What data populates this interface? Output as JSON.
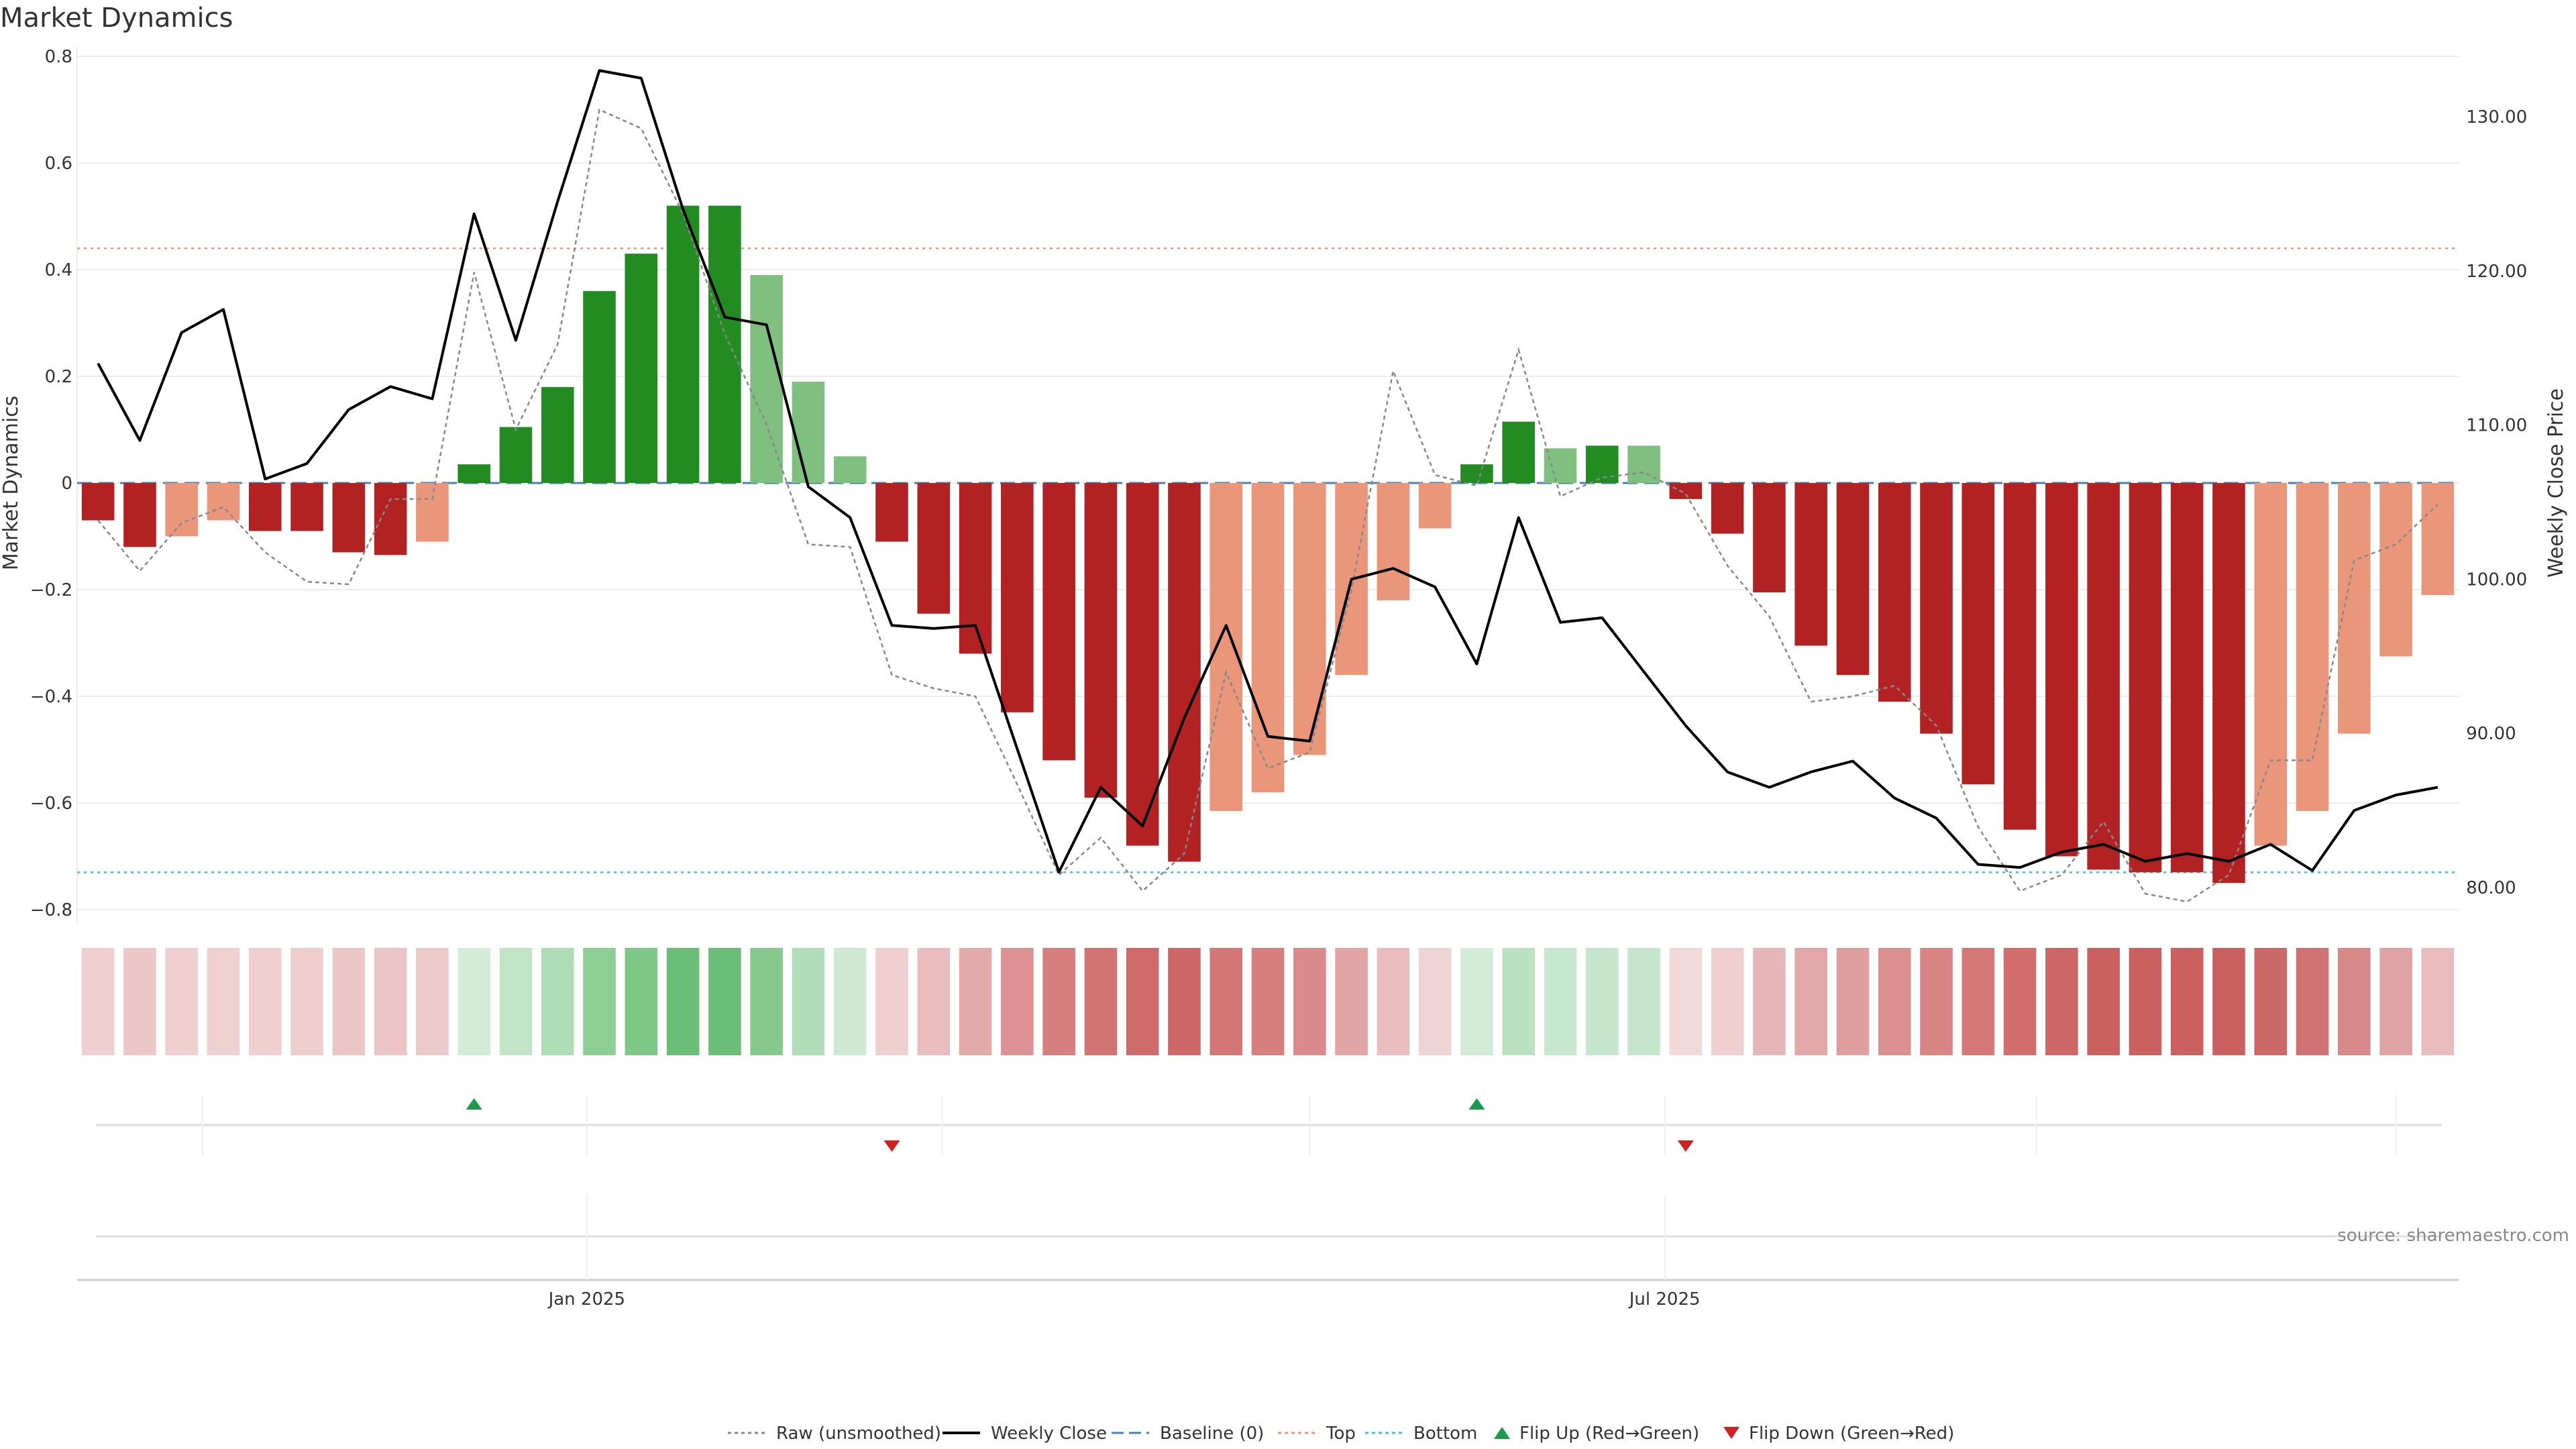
{
  "chart_data": {
    "type": "bar",
    "title": "Market Dynamics",
    "ylabel_left": "Market Dynamics",
    "ylabel_right": "Weekly Close Price",
    "ylim_left": [
      -0.85,
      0.8
    ],
    "ylim_right": [
      77,
      134
    ],
    "yticks_left": [
      "0.8",
      "0.6",
      "0.4",
      "0.2",
      "0",
      "−0.2",
      "−0.4",
      "−0.6",
      "−0.8"
    ],
    "yticks_left_values": [
      0.8,
      0.6,
      0.4,
      0.2,
      0,
      -0.2,
      -0.4,
      -0.6,
      -0.8
    ],
    "yticks_right": [
      "130.00",
      "120.00",
      "110.00",
      "100.00",
      "90.00",
      "80.00"
    ],
    "yticks_right_values": [
      130,
      120,
      110,
      100,
      90,
      80
    ],
    "xticks": [
      {
        "label": "Jan 2025",
        "index": 11.7
      },
      {
        "label": "Jul 2025",
        "index": 37.5
      }
    ],
    "top_line": 0.44,
    "bottom_line": -0.73,
    "baseline": 0,
    "bars": [
      -0.07,
      -0.12,
      -0.1,
      -0.07,
      -0.09,
      -0.09,
      -0.13,
      -0.135,
      -0.11,
      0.035,
      0.105,
      0.18,
      0.36,
      0.43,
      0.52,
      0.52,
      0.39,
      0.19,
      0.05,
      -0.11,
      -0.245,
      -0.32,
      -0.43,
      -0.52,
      -0.59,
      -0.68,
      -0.71,
      -0.615,
      -0.58,
      -0.51,
      -0.36,
      -0.22,
      -0.085,
      0.035,
      0.115,
      0.065,
      0.07,
      0.07,
      -0.03,
      -0.095,
      -0.205,
      -0.305,
      -0.36,
      -0.41,
      -0.47,
      -0.565,
      -0.65,
      -0.7,
      -0.725,
      -0.73,
      -0.73,
      -0.75,
      -0.68,
      -0.615,
      -0.47,
      -0.325,
      -0.21
    ],
    "bar_colors": [
      "#b22222",
      "#b22222",
      "#e9967a",
      "#e9967a",
      "#b22222",
      "#b22222",
      "#b22222",
      "#b22222",
      "#e9967a",
      "#228b22",
      "#228b22",
      "#228b22",
      "#228b22",
      "#228b22",
      "#228b22",
      "#228b22",
      "#7fbf7f",
      "#7fbf7f",
      "#7fbf7f",
      "#b22222",
      "#b22222",
      "#b22222",
      "#b22222",
      "#b22222",
      "#b22222",
      "#b22222",
      "#b22222",
      "#e9967a",
      "#e9967a",
      "#e9967a",
      "#e9967a",
      "#e9967a",
      "#e9967a",
      "#228b22",
      "#228b22",
      "#7fbf7f",
      "#228b22",
      "#7fbf7f",
      "#b22222",
      "#b22222",
      "#b22222",
      "#b22222",
      "#b22222",
      "#b22222",
      "#b22222",
      "#b22222",
      "#b22222",
      "#b22222",
      "#b22222",
      "#b22222",
      "#b22222",
      "#b22222",
      "#e9967a",
      "#e9967a",
      "#e9967a",
      "#e9967a",
      "#e9967a"
    ],
    "heat_colors": [
      "#efcfcf",
      "#ecc7c7",
      "#efcfcf",
      "#efd1d1",
      "#efcfcf",
      "#eecdcd",
      "#ecc6c6",
      "#ebc5c5",
      "#eccaca",
      "#d3ecd6",
      "#c2e5c7",
      "#aedcb5",
      "#8ccf95",
      "#7dc787",
      "#6cbd77",
      "#6cbd77",
      "#86c98f",
      "#b1ddb8",
      "#cfead3",
      "#efcfcf",
      "#e9bdbd",
      "#e2a9a9",
      "#dc9292",
      "#d77e7e",
      "#d37474",
      "#cf6a6a",
      "#ce6868",
      "#d37676",
      "#d77f7f",
      "#da8a8a",
      "#e1a5a5",
      "#e9bdbd",
      "#eed4d4",
      "#d3ecd6",
      "#bae2c0",
      "#c8e8cd",
      "#c5e6ca",
      "#c5e6ca",
      "#f2dada",
      "#efcfcf",
      "#e7b7b7",
      "#e2a7a7",
      "#df9e9e",
      "#db9090",
      "#d98585",
      "#d57878",
      "#d16d6d",
      "#cd6666",
      "#cb6060",
      "#cb6060",
      "#cb6060",
      "#cb6060",
      "#cb6868",
      "#d17272",
      "#d98888",
      "#e0a3a3",
      "#e9bcbc"
    ],
    "series": [
      {
        "name": "Raw (unsmoothed)",
        "color": "#888888",
        "axis": "left",
        "values": [
          -0.07,
          -0.165,
          -0.075,
          -0.045,
          -0.13,
          -0.185,
          -0.19,
          -0.03,
          -0.03,
          0.395,
          0.1,
          0.26,
          0.7,
          0.665,
          0.505,
          0.28,
          0.11,
          -0.115,
          -0.12,
          -0.36,
          -0.385,
          -0.4,
          -0.565,
          -0.735,
          -0.665,
          -0.765,
          -0.695,
          -0.355,
          -0.535,
          -0.505,
          -0.2,
          0.21,
          0.015,
          -0.005,
          0.25,
          -0.025,
          0.01,
          0.02,
          -0.02,
          -0.155,
          -0.25,
          -0.41,
          -0.4,
          -0.38,
          -0.455,
          -0.645,
          -0.765,
          -0.735,
          -0.635,
          -0.77,
          -0.785,
          -0.735,
          -0.52,
          -0.52,
          -0.145,
          -0.115,
          -0.04
        ]
      },
      {
        "name": "Weekly Close",
        "color": "#000000",
        "axis": "right",
        "values": [
          114,
          109,
          116,
          117.5,
          106.5,
          107.5,
          111,
          112.5,
          111.7,
          123.7,
          115.5,
          124.5,
          133,
          132.5,
          124,
          117,
          116.5,
          106,
          104,
          97,
          96.8,
          97,
          89,
          81,
          86.5,
          84,
          91,
          97,
          89.8,
          89.5,
          100,
          100.7,
          99.5,
          94.5,
          104,
          97.2,
          97.5,
          94,
          90.5,
          87.5,
          86.5,
          87.5,
          88.2,
          85.8,
          84.5,
          81.5,
          81.3,
          82.3,
          82.8,
          81.7,
          82.2,
          81.7,
          82.8,
          81.1,
          85,
          86,
          86.5
        ]
      }
    ],
    "flip_up_indices": [
      9,
      33
    ],
    "flip_down_indices": [
      19,
      38
    ],
    "legend": [
      {
        "label": "Raw (unsmoothed)",
        "style": "dotted",
        "color": "#888888"
      },
      {
        "label": "Weekly Close",
        "style": "solid",
        "color": "#000000"
      },
      {
        "label": "Baseline (0)",
        "style": "dashed",
        "color": "#4682b4"
      },
      {
        "label": "Top",
        "style": "dotted",
        "color": "#e9967a"
      },
      {
        "label": "Bottom",
        "style": "dotted",
        "color": "#40c0d0"
      },
      {
        "label": "Flip Up (Red→Green)",
        "style": "triangle-up",
        "color": "#1a9a4a"
      },
      {
        "label": "Flip Down (Green→Red)",
        "style": "triangle-down",
        "color": "#d02020"
      }
    ],
    "legend_position": "bottom-center",
    "grid": true
  },
  "source_text": "source: sharemaestro.com"
}
